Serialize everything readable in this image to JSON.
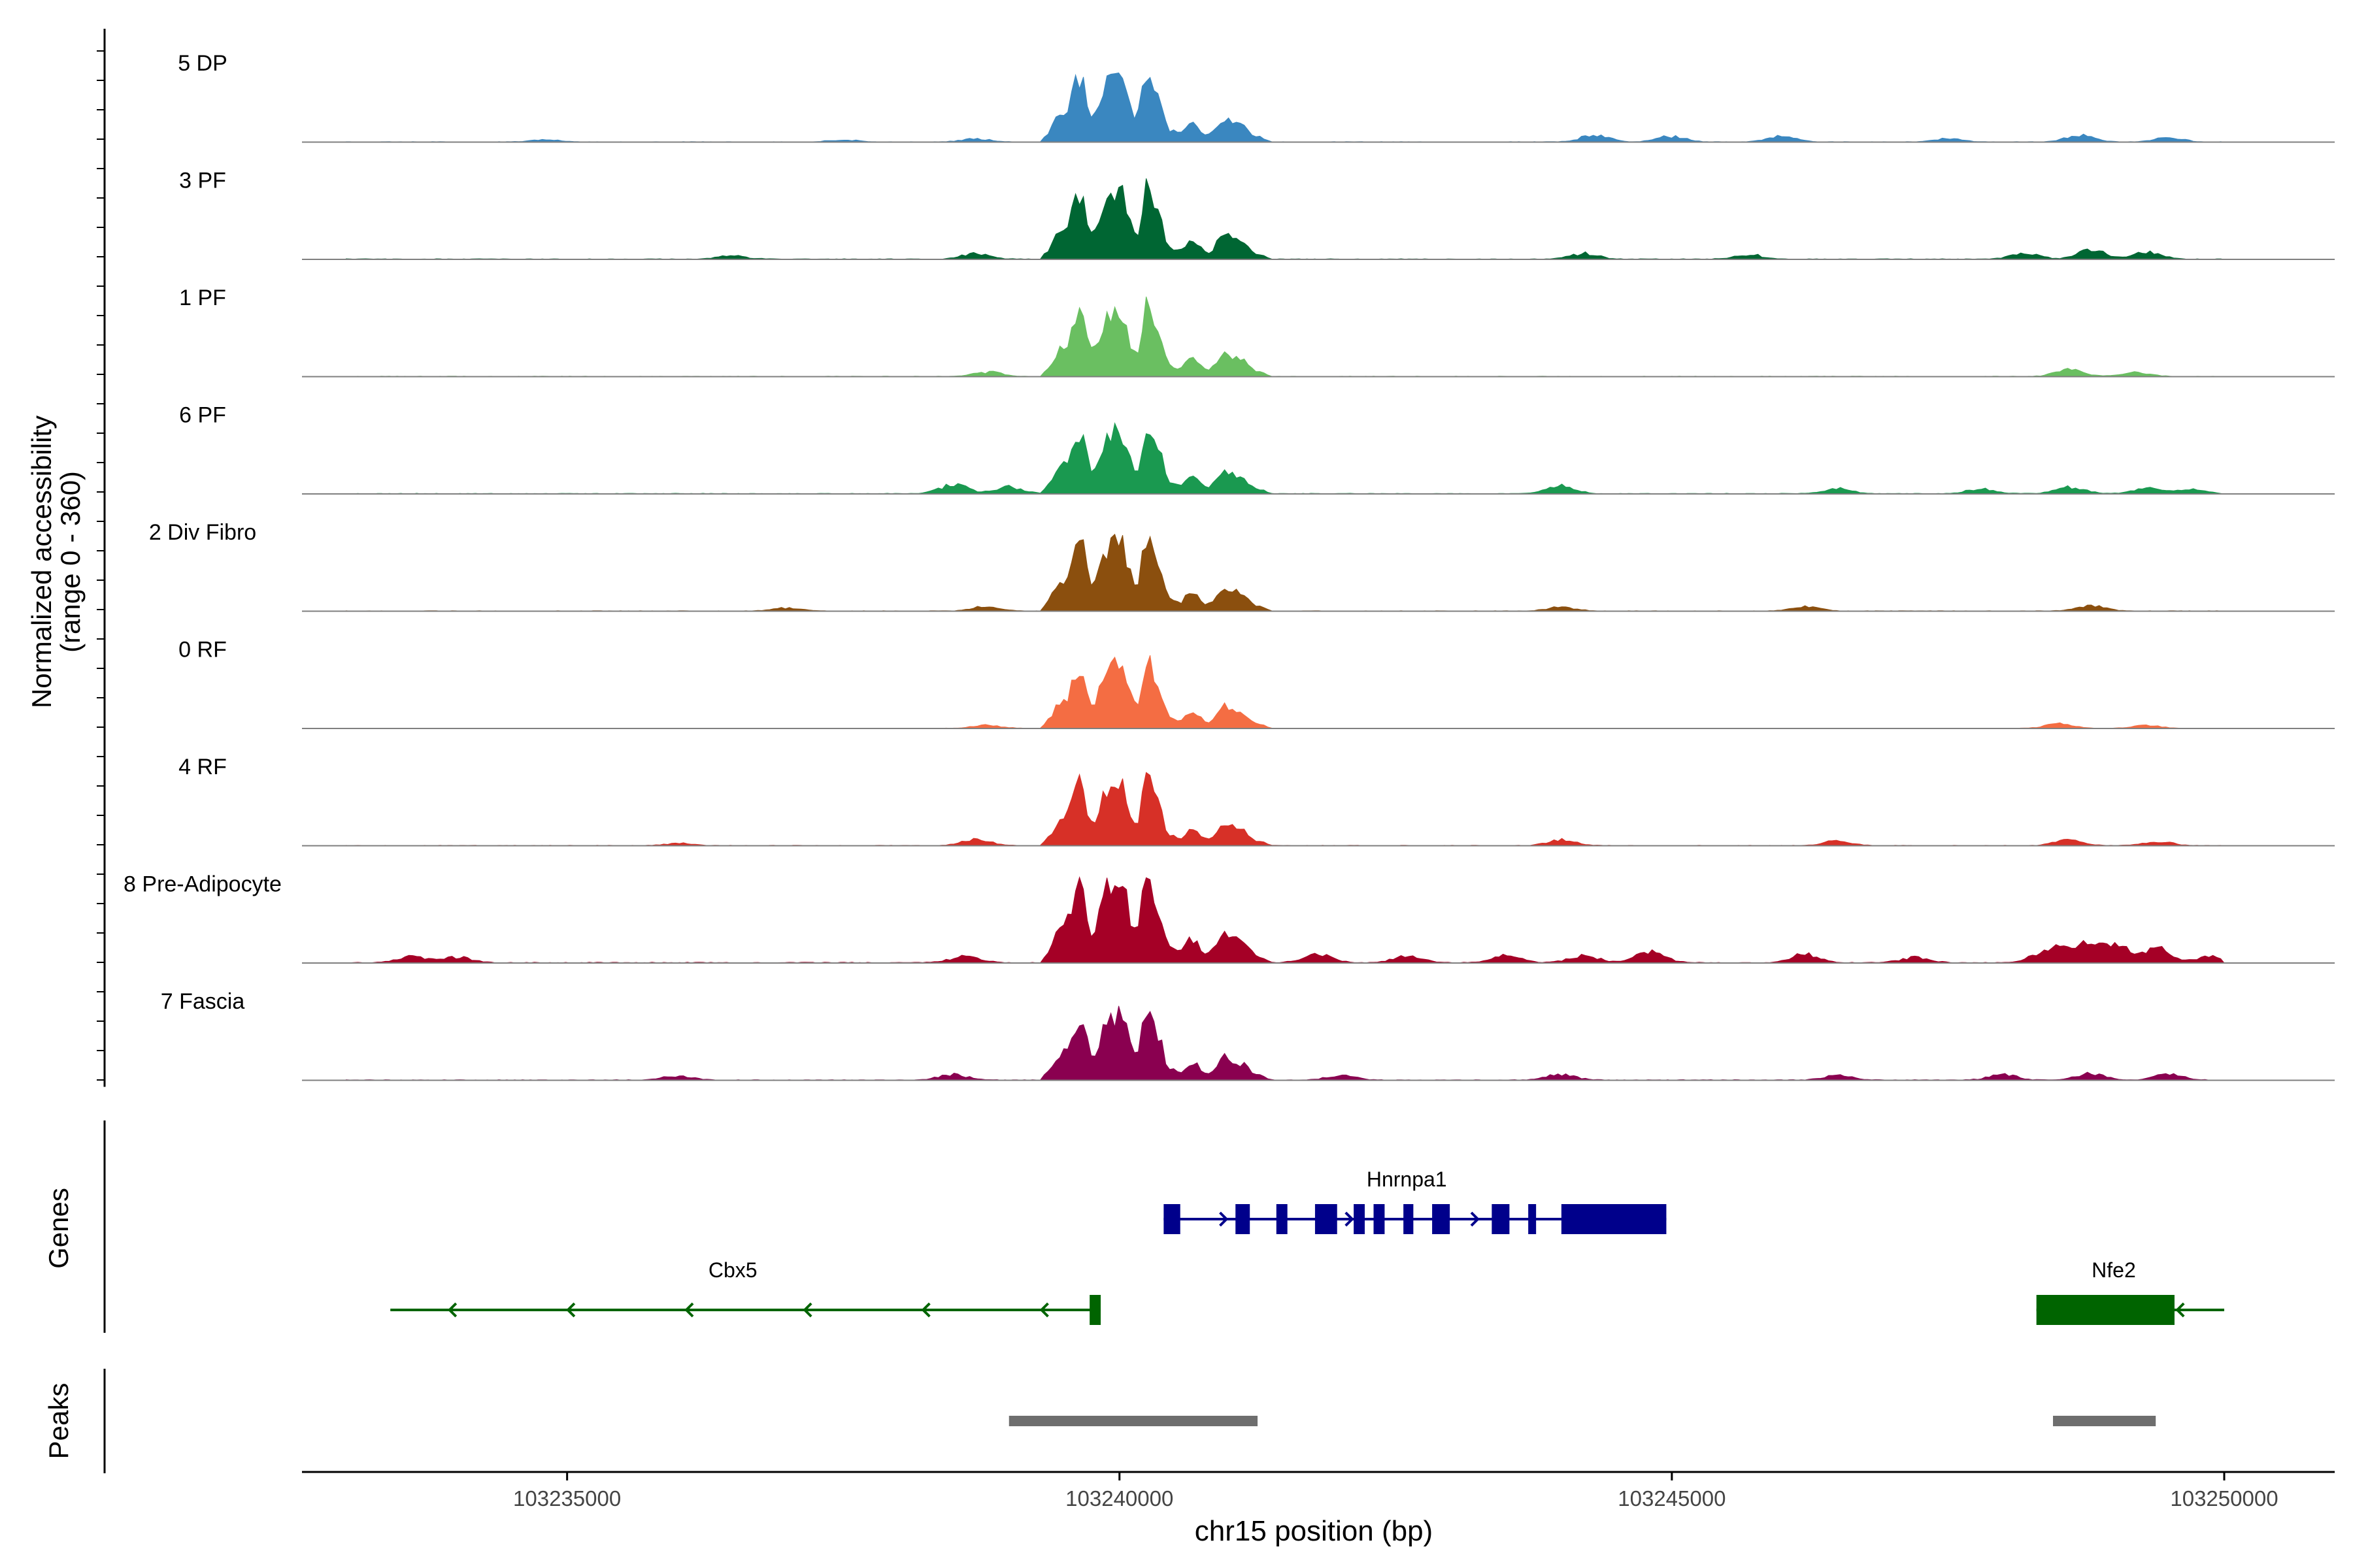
{
  "chart_data": {
    "type": "area",
    "title": "",
    "ylabel_line1": "Normalized accessibility",
    "ylabel_line2": "(range 0 - 360)",
    "xlabel": "chr15 position (bp)",
    "xlim": [
      103232600,
      103251000
    ],
    "yrange": [
      0,
      360
    ],
    "xticks": [
      {
        "value": 103235000,
        "label": "103235000"
      },
      {
        "value": 103240000,
        "label": "103240000"
      },
      {
        "value": 103245000,
        "label": "103245000"
      },
      {
        "value": 103250000,
        "label": "103250000"
      }
    ],
    "peak_shape": {
      "x": [
        103239300,
        103239500,
        103239650,
        103239750,
        103239900,
        103240000,
        103240150,
        103240250,
        103240350,
        103240450,
        103240550,
        103240650,
        103240800,
        103240950,
        103241100,
        103241250,
        103241400
      ],
      "y": [
        0.05,
        0.35,
        0.78,
        0.3,
        0.7,
        0.8,
        0.28,
        0.85,
        0.55,
        0.14,
        0.1,
        0.22,
        0.08,
        0.28,
        0.2,
        0.06,
        0.0
      ]
    },
    "series": [
      {
        "name": "5 DP",
        "color": "#3a87c0",
        "peak_scale": 0.62,
        "noise": 0.03,
        "bumps": [
          [
            103234800,
            0.02
          ],
          [
            103237500,
            0.02
          ],
          [
            103238700,
            0.03
          ],
          [
            103244300,
            0.06
          ],
          [
            103245000,
            0.05
          ],
          [
            103246000,
            0.05
          ],
          [
            103247500,
            0.03
          ],
          [
            103248700,
            0.06
          ],
          [
            103249500,
            0.04
          ]
        ]
      },
      {
        "name": "3 PF",
        "color": "#006633",
        "peak_scale": 0.62,
        "noise": 0.04,
        "bumps": [
          [
            103236500,
            0.03
          ],
          [
            103238700,
            0.05
          ],
          [
            103244200,
            0.05
          ],
          [
            103245700,
            0.04
          ],
          [
            103248200,
            0.05
          ],
          [
            103248800,
            0.08
          ],
          [
            103249300,
            0.06
          ]
        ]
      },
      {
        "name": "1 PF",
        "color": "#6abf61",
        "peak_scale": 0.6,
        "noise": 0.03,
        "bumps": [
          [
            103238800,
            0.04
          ],
          [
            103248600,
            0.06
          ],
          [
            103249200,
            0.04
          ]
        ]
      },
      {
        "name": "6 PF",
        "color": "#1a9950",
        "peak_scale": 0.58,
        "noise": 0.04,
        "bumps": [
          [
            103238500,
            0.08
          ],
          [
            103239000,
            0.06
          ],
          [
            103244000,
            0.07
          ],
          [
            103246500,
            0.05
          ],
          [
            103247800,
            0.04
          ],
          [
            103248600,
            0.06
          ],
          [
            103249300,
            0.05
          ],
          [
            103249700,
            0.04
          ]
        ]
      },
      {
        "name": "2 Div Fibro",
        "color": "#8b4f0e",
        "peak_scale": 0.65,
        "noise": 0.03,
        "bumps": [
          [
            103237000,
            0.03
          ],
          [
            103238800,
            0.04
          ],
          [
            103244000,
            0.04
          ],
          [
            103246200,
            0.04
          ],
          [
            103248800,
            0.05
          ]
        ]
      },
      {
        "name": "0 RF",
        "color": "#f46d43",
        "peak_scale": 0.6,
        "noise": 0.02,
        "bumps": [
          [
            103238800,
            0.03
          ],
          [
            103248500,
            0.04
          ],
          [
            103249300,
            0.03
          ]
        ]
      },
      {
        "name": "4 RF",
        "color": "#d73027",
        "peak_scale": 0.58,
        "noise": 0.03,
        "bumps": [
          [
            103236000,
            0.02
          ],
          [
            103238700,
            0.06
          ],
          [
            103244000,
            0.05
          ],
          [
            103246500,
            0.04
          ],
          [
            103248600,
            0.05
          ],
          [
            103249400,
            0.04
          ]
        ]
      },
      {
        "name": "8 Pre-Adipocyte",
        "color": "#a50026",
        "peak_scale": 0.78,
        "noise": 0.05,
        "bumps": [
          [
            103233600,
            0.06
          ],
          [
            103234000,
            0.05
          ],
          [
            103238600,
            0.06
          ],
          [
            103241800,
            0.08
          ],
          [
            103242600,
            0.06
          ],
          [
            103243500,
            0.07
          ],
          [
            103244200,
            0.07
          ],
          [
            103244800,
            0.1
          ],
          [
            103246200,
            0.08
          ],
          [
            103247200,
            0.05
          ],
          [
            103248400,
            0.12
          ],
          [
            103248700,
            0.16
          ],
          [
            103249000,
            0.18
          ],
          [
            103249400,
            0.14
          ],
          [
            103249900,
            0.06
          ]
        ]
      },
      {
        "name": "7 Fascia",
        "color": "#8a0050",
        "peak_scale": 0.6,
        "noise": 0.04,
        "bumps": [
          [
            103236000,
            0.04
          ],
          [
            103238500,
            0.05
          ],
          [
            103242000,
            0.04
          ],
          [
            103244000,
            0.05
          ],
          [
            103246500,
            0.04
          ],
          [
            103248000,
            0.05
          ],
          [
            103248800,
            0.06
          ],
          [
            103249500,
            0.05
          ]
        ]
      }
    ],
    "genes_label": "Genes",
    "peaks_label": "Peaks",
    "genes": [
      {
        "name": "Hnrnpa1",
        "strand": "+",
        "color": "#00008b",
        "start": 103240400,
        "end": 103244950,
        "exons": [
          [
            103240400,
            103240550
          ],
          [
            103241050,
            103241180
          ],
          [
            103241420,
            103241520
          ],
          [
            103241770,
            103241970
          ],
          [
            103242120,
            103242220
          ],
          [
            103242300,
            103242400
          ],
          [
            103242570,
            103242660
          ],
          [
            103242830,
            103242990
          ],
          [
            103243370,
            103243530
          ],
          [
            103243700,
            103243770
          ],
          [
            103244000,
            103244950
          ]
        ]
      },
      {
        "name": "Cbx5",
        "strand": "-",
        "color": "#006400",
        "start": 103233400,
        "end": 103239830,
        "exons": [
          [
            103239730,
            103239830
          ]
        ]
      },
      {
        "name": "Nfe2",
        "strand": "-",
        "color": "#006400",
        "start": 103248300,
        "end": 103250000,
        "exons": [
          [
            103248300,
            103249550
          ]
        ]
      }
    ],
    "peaks": [
      {
        "start": 103239000,
        "end": 103241250
      },
      {
        "start": 103248450,
        "end": 103249380
      }
    ]
  }
}
